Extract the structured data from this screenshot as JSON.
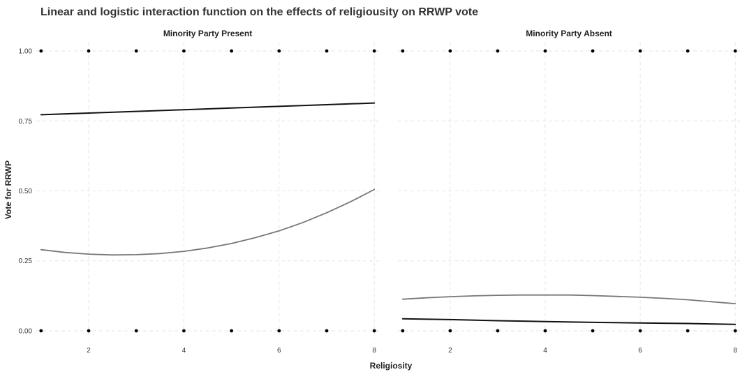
{
  "chart_data": {
    "type": "line",
    "title": "Linear and logistic interaction function on the effects of religiousity on RRWP vote",
    "xlabel": "Religiosity",
    "ylabel": "Vote for RRWP",
    "xlim": [
      0.9,
      8.1
    ],
    "ylim": [
      -0.03,
      1.03
    ],
    "x_ticks": [
      2,
      4,
      6,
      8
    ],
    "y_ticks": [
      0.0,
      0.25,
      0.5,
      0.75,
      1.0
    ],
    "y_tick_labels": [
      "0.00",
      "0.25",
      "0.50",
      "0.75",
      "1.00"
    ],
    "grid": true,
    "panels": [
      {
        "label": "Minority Party Present",
        "observations": {
          "x": [
            1,
            2,
            3,
            4,
            5,
            6,
            7,
            8,
            1,
            2,
            3,
            4,
            5,
            6,
            7,
            8
          ],
          "y": [
            1,
            1,
            1,
            1,
            1,
            1,
            1,
            1,
            0,
            0,
            0,
            0,
            0,
            0,
            0,
            0
          ]
        },
        "series": [
          {
            "color": "#111111",
            "x": [
              1,
              2,
              3,
              4,
              5,
              6,
              7,
              8
            ],
            "y": [
              0.772,
              0.778,
              0.784,
              0.79,
              0.796,
              0.802,
              0.808,
              0.814
            ]
          },
          {
            "color": "#777777",
            "x": [
              1,
              1.5,
              2,
              2.5,
              3,
              3.5,
              4,
              4.5,
              5,
              5.5,
              6,
              6.5,
              7,
              7.5,
              8
            ],
            "y": [
              0.29,
              0.28,
              0.274,
              0.271,
              0.272,
              0.276,
              0.284,
              0.296,
              0.312,
              0.333,
              0.357,
              0.387,
              0.422,
              0.461,
              0.505
            ]
          }
        ]
      },
      {
        "label": "Minority Party Absent",
        "observations": {
          "x": [
            1,
            2,
            3,
            4,
            5,
            6,
            7,
            8,
            1,
            2,
            3,
            4,
            5,
            6,
            7,
            8
          ],
          "y": [
            1,
            1,
            1,
            1,
            1,
            1,
            1,
            1,
            0,
            0,
            0,
            0,
            0,
            0,
            0,
            0
          ]
        },
        "series": [
          {
            "color": "#111111",
            "x": [
              1,
              2,
              3,
              4,
              5,
              6,
              7,
              8
            ],
            "y": [
              0.043,
              0.04,
              0.036,
              0.033,
              0.03,
              0.028,
              0.026,
              0.023
            ]
          },
          {
            "color": "#777777",
            "x": [
              1,
              1.5,
              2,
              2.5,
              3,
              3.5,
              4,
              4.5,
              5,
              5.5,
              6,
              6.5,
              7,
              7.5,
              8
            ],
            "y": [
              0.113,
              0.118,
              0.122,
              0.125,
              0.127,
              0.128,
              0.128,
              0.128,
              0.126,
              0.123,
              0.12,
              0.116,
              0.111,
              0.104,
              0.097
            ]
          }
        ]
      }
    ]
  }
}
